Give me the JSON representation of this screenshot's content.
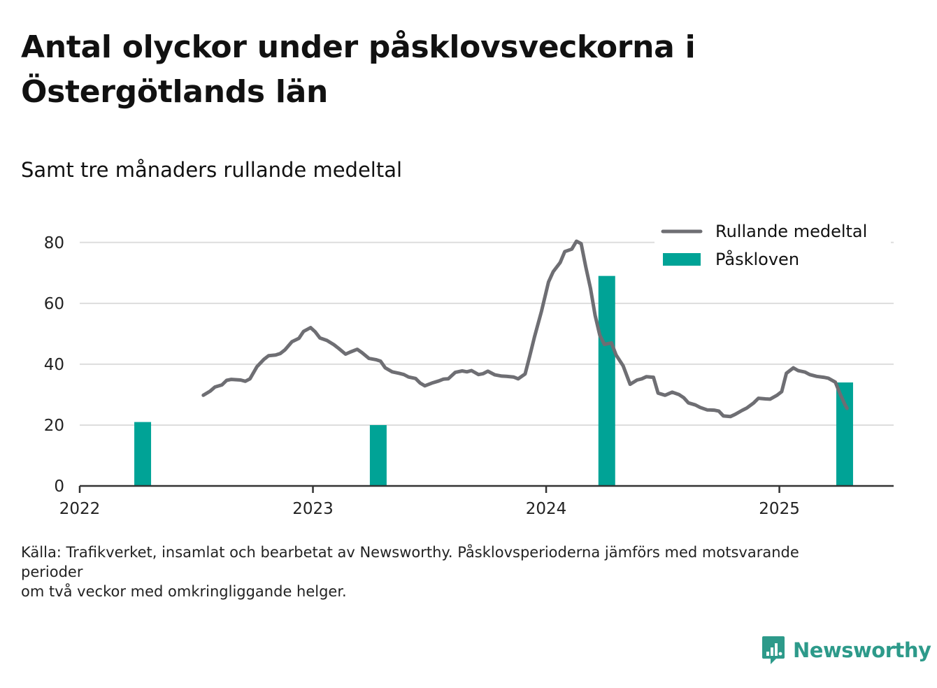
{
  "title": "Antal olyckor under påsklovsveckorna i Östergötlands län",
  "subtitle": "Samt tre månaders rullande medeltal",
  "source_lines": [
    "Källa: Trafikverket, insamlat och bearbetat av Newsworthy. Påsklovsperioderna jämförs med motsvarande perioder",
    "om två veckor med omkringliggande helger."
  ],
  "logo": {
    "text": "Newsworthy",
    "icon": "newsworthy-logo-icon"
  },
  "colors": {
    "line": "#6e6e73",
    "bar": "#00a396",
    "grid": "#dddddd",
    "axis": "#333333",
    "logo": "#2d9a8a"
  },
  "chart_data": {
    "type": "bar+line",
    "ylim": [
      0,
      85
    ],
    "yticks": [
      0,
      20,
      40,
      60,
      80
    ],
    "xlim": [
      2022.0,
      2025.49
    ],
    "xticks": [
      2022,
      2023,
      2024,
      2025
    ],
    "grid": true,
    "legend_position": "top-right",
    "legend": [
      {
        "label": "Rullande medeltal",
        "kind": "line"
      },
      {
        "label": "Påskloven",
        "kind": "bar"
      }
    ],
    "bars": [
      {
        "x": 2022.27,
        "value": 21
      },
      {
        "x": 2023.28,
        "value": 20
      },
      {
        "x": 2024.26,
        "value": 69
      },
      {
        "x": 2025.28,
        "value": 34
      }
    ],
    "line": [
      [
        2022.53,
        29.8
      ],
      [
        2022.56,
        31.2
      ],
      [
        2022.58,
        32.5
      ],
      [
        2022.61,
        33.2
      ],
      [
        2022.63,
        34.7
      ],
      [
        2022.65,
        35.0
      ],
      [
        2022.69,
        34.8
      ],
      [
        2022.71,
        34.4
      ],
      [
        2022.73,
        35.2
      ],
      [
        2022.76,
        39.2
      ],
      [
        2022.79,
        41.6
      ],
      [
        2022.81,
        42.8
      ],
      [
        2022.84,
        43.0
      ],
      [
        2022.86,
        43.5
      ],
      [
        2022.88,
        44.7
      ],
      [
        2022.91,
        47.4
      ],
      [
        2022.94,
        48.5
      ],
      [
        2022.96,
        50.8
      ],
      [
        2022.99,
        52.0
      ],
      [
        2023.01,
        50.6
      ],
      [
        2023.03,
        48.6
      ],
      [
        2023.06,
        47.8
      ],
      [
        2023.09,
        46.4
      ],
      [
        2023.11,
        45.2
      ],
      [
        2023.14,
        43.3
      ],
      [
        2023.16,
        44.0
      ],
      [
        2023.19,
        44.9
      ],
      [
        2023.21,
        43.8
      ],
      [
        2023.24,
        41.9
      ],
      [
        2023.27,
        41.5
      ],
      [
        2023.29,
        41.0
      ],
      [
        2023.31,
        38.8
      ],
      [
        2023.34,
        37.5
      ],
      [
        2023.37,
        37.0
      ],
      [
        2023.39,
        36.6
      ],
      [
        2023.41,
        35.8
      ],
      [
        2023.44,
        35.3
      ],
      [
        2023.46,
        33.8
      ],
      [
        2023.48,
        32.9
      ],
      [
        2023.51,
        33.8
      ],
      [
        2023.54,
        34.5
      ],
      [
        2023.56,
        35.1
      ],
      [
        2023.58,
        35.2
      ],
      [
        2023.61,
        37.3
      ],
      [
        2023.64,
        37.8
      ],
      [
        2023.66,
        37.5
      ],
      [
        2023.68,
        37.9
      ],
      [
        2023.71,
        36.6
      ],
      [
        2023.73,
        36.9
      ],
      [
        2023.75,
        37.7
      ],
      [
        2023.78,
        36.5
      ],
      [
        2023.81,
        36.1
      ],
      [
        2023.83,
        36.0
      ],
      [
        2023.86,
        35.8
      ],
      [
        2023.88,
        35.2
      ],
      [
        2023.91,
        36.8
      ],
      [
        2023.93,
        42.8
      ],
      [
        2023.95,
        49.0
      ],
      [
        2023.98,
        57.4
      ],
      [
        2024.01,
        67.0
      ],
      [
        2024.03,
        70.4
      ],
      [
        2024.06,
        73.4
      ],
      [
        2024.08,
        77.0
      ],
      [
        2024.11,
        77.8
      ],
      [
        2024.13,
        80.4
      ],
      [
        2024.15,
        79.6
      ],
      [
        2024.17,
        72.0
      ],
      [
        2024.19,
        65.0
      ],
      [
        2024.21,
        56.0
      ],
      [
        2024.23,
        49.5
      ],
      [
        2024.25,
        46.5
      ],
      [
        2024.28,
        47.0
      ],
      [
        2024.3,
        43.0
      ],
      [
        2024.33,
        39.5
      ],
      [
        2024.36,
        33.4
      ],
      [
        2024.39,
        34.8
      ],
      [
        2024.41,
        35.2
      ],
      [
        2024.43,
        35.9
      ],
      [
        2024.46,
        35.7
      ],
      [
        2024.48,
        30.5
      ],
      [
        2024.51,
        29.8
      ],
      [
        2024.54,
        30.8
      ],
      [
        2024.57,
        30.0
      ],
      [
        2024.59,
        29.0
      ],
      [
        2024.61,
        27.3
      ],
      [
        2024.64,
        26.6
      ],
      [
        2024.66,
        25.8
      ],
      [
        2024.69,
        25.0
      ],
      [
        2024.72,
        24.9
      ],
      [
        2024.74,
        24.6
      ],
      [
        2024.76,
        23.0
      ],
      [
        2024.79,
        22.8
      ],
      [
        2024.81,
        23.5
      ],
      [
        2024.84,
        24.8
      ],
      [
        2024.86,
        25.6
      ],
      [
        2024.89,
        27.3
      ],
      [
        2024.91,
        28.8
      ],
      [
        2024.94,
        28.6
      ],
      [
        2024.96,
        28.5
      ],
      [
        2024.99,
        29.8
      ],
      [
        2025.01,
        31.0
      ],
      [
        2025.03,
        37.0
      ],
      [
        2025.06,
        38.8
      ],
      [
        2025.08,
        37.9
      ],
      [
        2025.11,
        37.4
      ],
      [
        2025.13,
        36.6
      ],
      [
        2025.16,
        36.0
      ],
      [
        2025.19,
        35.7
      ],
      [
        2025.21,
        35.4
      ],
      [
        2025.24,
        34.1
      ],
      [
        2025.26,
        30.3
      ],
      [
        2025.28,
        26.9
      ],
      [
        2025.29,
        25.5
      ]
    ]
  }
}
